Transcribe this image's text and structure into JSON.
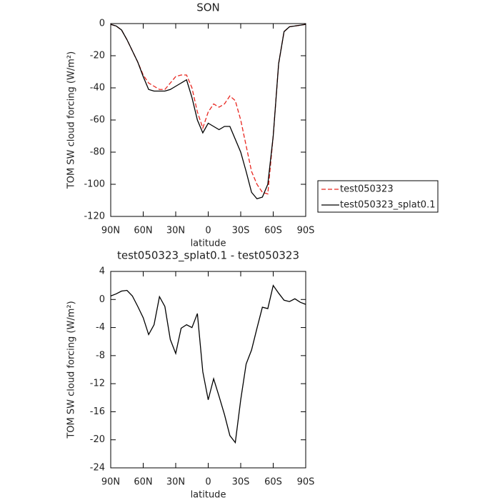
{
  "chart_data": [
    {
      "type": "line",
      "title": "SON",
      "xlabel": "latitude",
      "ylabel": "TOM SW cloud forcing (W/m²)",
      "x": [
        90,
        85,
        80,
        75,
        70,
        65,
        60,
        55,
        50,
        45,
        40,
        35,
        30,
        25,
        20,
        15,
        10,
        5,
        0,
        -5,
        -10,
        -15,
        -20,
        -25,
        -30,
        -35,
        -40,
        -45,
        -50,
        -55,
        -60,
        -65,
        -70,
        -75,
        -80,
        -85,
        -90
      ],
      "series": [
        {
          "name": "test050323",
          "color": "#e8261f",
          "dash": "dashed",
          "values": [
            -0.5,
            -1.5,
            -4,
            -10,
            -17,
            -24,
            -32,
            -37,
            -39,
            -41,
            -41,
            -37,
            -33,
            -32,
            -32,
            -40,
            -55,
            -65,
            -55,
            -50,
            -52,
            -50,
            -45,
            -48,
            -60,
            -76,
            -92,
            -100,
            -105,
            -106,
            -70,
            -25,
            -5,
            -2,
            -1.5,
            -1,
            -0.5
          ]
        },
        {
          "name": "test050323_splat0.1",
          "color": "#000000",
          "dash": "solid",
          "values": [
            -0.5,
            -1.5,
            -4,
            -10,
            -17,
            -24,
            -33,
            -41,
            -42,
            -42,
            -42,
            -41,
            -39,
            -37,
            -35,
            -46,
            -60,
            -68,
            -62,
            -64,
            -66,
            -64,
            -64,
            -72,
            -80,
            -92,
            -105,
            -109,
            -108,
            -100,
            -70,
            -25,
            -5,
            -2,
            -1.5,
            -1,
            -0.5
          ]
        }
      ],
      "xlim": [
        90,
        -90
      ],
      "xticks": [
        {
          "value": 90,
          "label": "90N"
        },
        {
          "value": 60,
          "label": "60N"
        },
        {
          "value": 30,
          "label": "30N"
        },
        0,
        {
          "value": -30,
          "label": "30S"
        },
        {
          "value": -60,
          "label": "60S"
        },
        {
          "value": -90,
          "label": "90S"
        }
      ],
      "ylim": [
        -120,
        0
      ],
      "yticks": [
        0,
        -20,
        -40,
        -60,
        -80,
        -100,
        -120
      ],
      "legend": "right"
    },
    {
      "type": "line",
      "title": "test050323_splat0.1 - test050323",
      "xlabel": "latitude",
      "ylabel": "TOM SW cloud forcing (W/m²)",
      "x": [
        90,
        85,
        80,
        75,
        70,
        65,
        60,
        55,
        50,
        45,
        40,
        35,
        30,
        25,
        20,
        15,
        10,
        5,
        0,
        -5,
        -10,
        -15,
        -20,
        -25,
        -30,
        -35,
        -40,
        -45,
        -50,
        -55,
        -60,
        -65,
        -70,
        -75,
        -80,
        -85,
        -90
      ],
      "values": [
        0.5,
        0.8,
        1.2,
        1.3,
        0.5,
        -1,
        -2.6,
        -5,
        -3.6,
        0.4,
        -1,
        -5.7,
        -7.7,
        -4.1,
        -3.6,
        -4,
        -2,
        -10.3,
        -14.3,
        -11.3,
        -13.8,
        -16.4,
        -19.4,
        -20.4,
        -14.3,
        -9.2,
        -7.2,
        -4.1,
        -1.1,
        -1.3,
        2,
        0.9,
        -0.1,
        -0.3,
        0.1,
        -0.4,
        -0.7
      ],
      "color": "#000000",
      "xlim": [
        90,
        -90
      ],
      "xticks": [
        {
          "value": 90,
          "label": "90N"
        },
        {
          "value": 60,
          "label": "60N"
        },
        {
          "value": 30,
          "label": "30N"
        },
        0,
        {
          "value": -30,
          "label": "30S"
        },
        {
          "value": -60,
          "label": "60S"
        },
        {
          "value": -90,
          "label": "90S"
        }
      ],
      "ylim": [
        -24,
        4
      ],
      "yticks": [
        4,
        0,
        -4,
        -8,
        -12,
        -16,
        -20,
        -24
      ]
    }
  ]
}
